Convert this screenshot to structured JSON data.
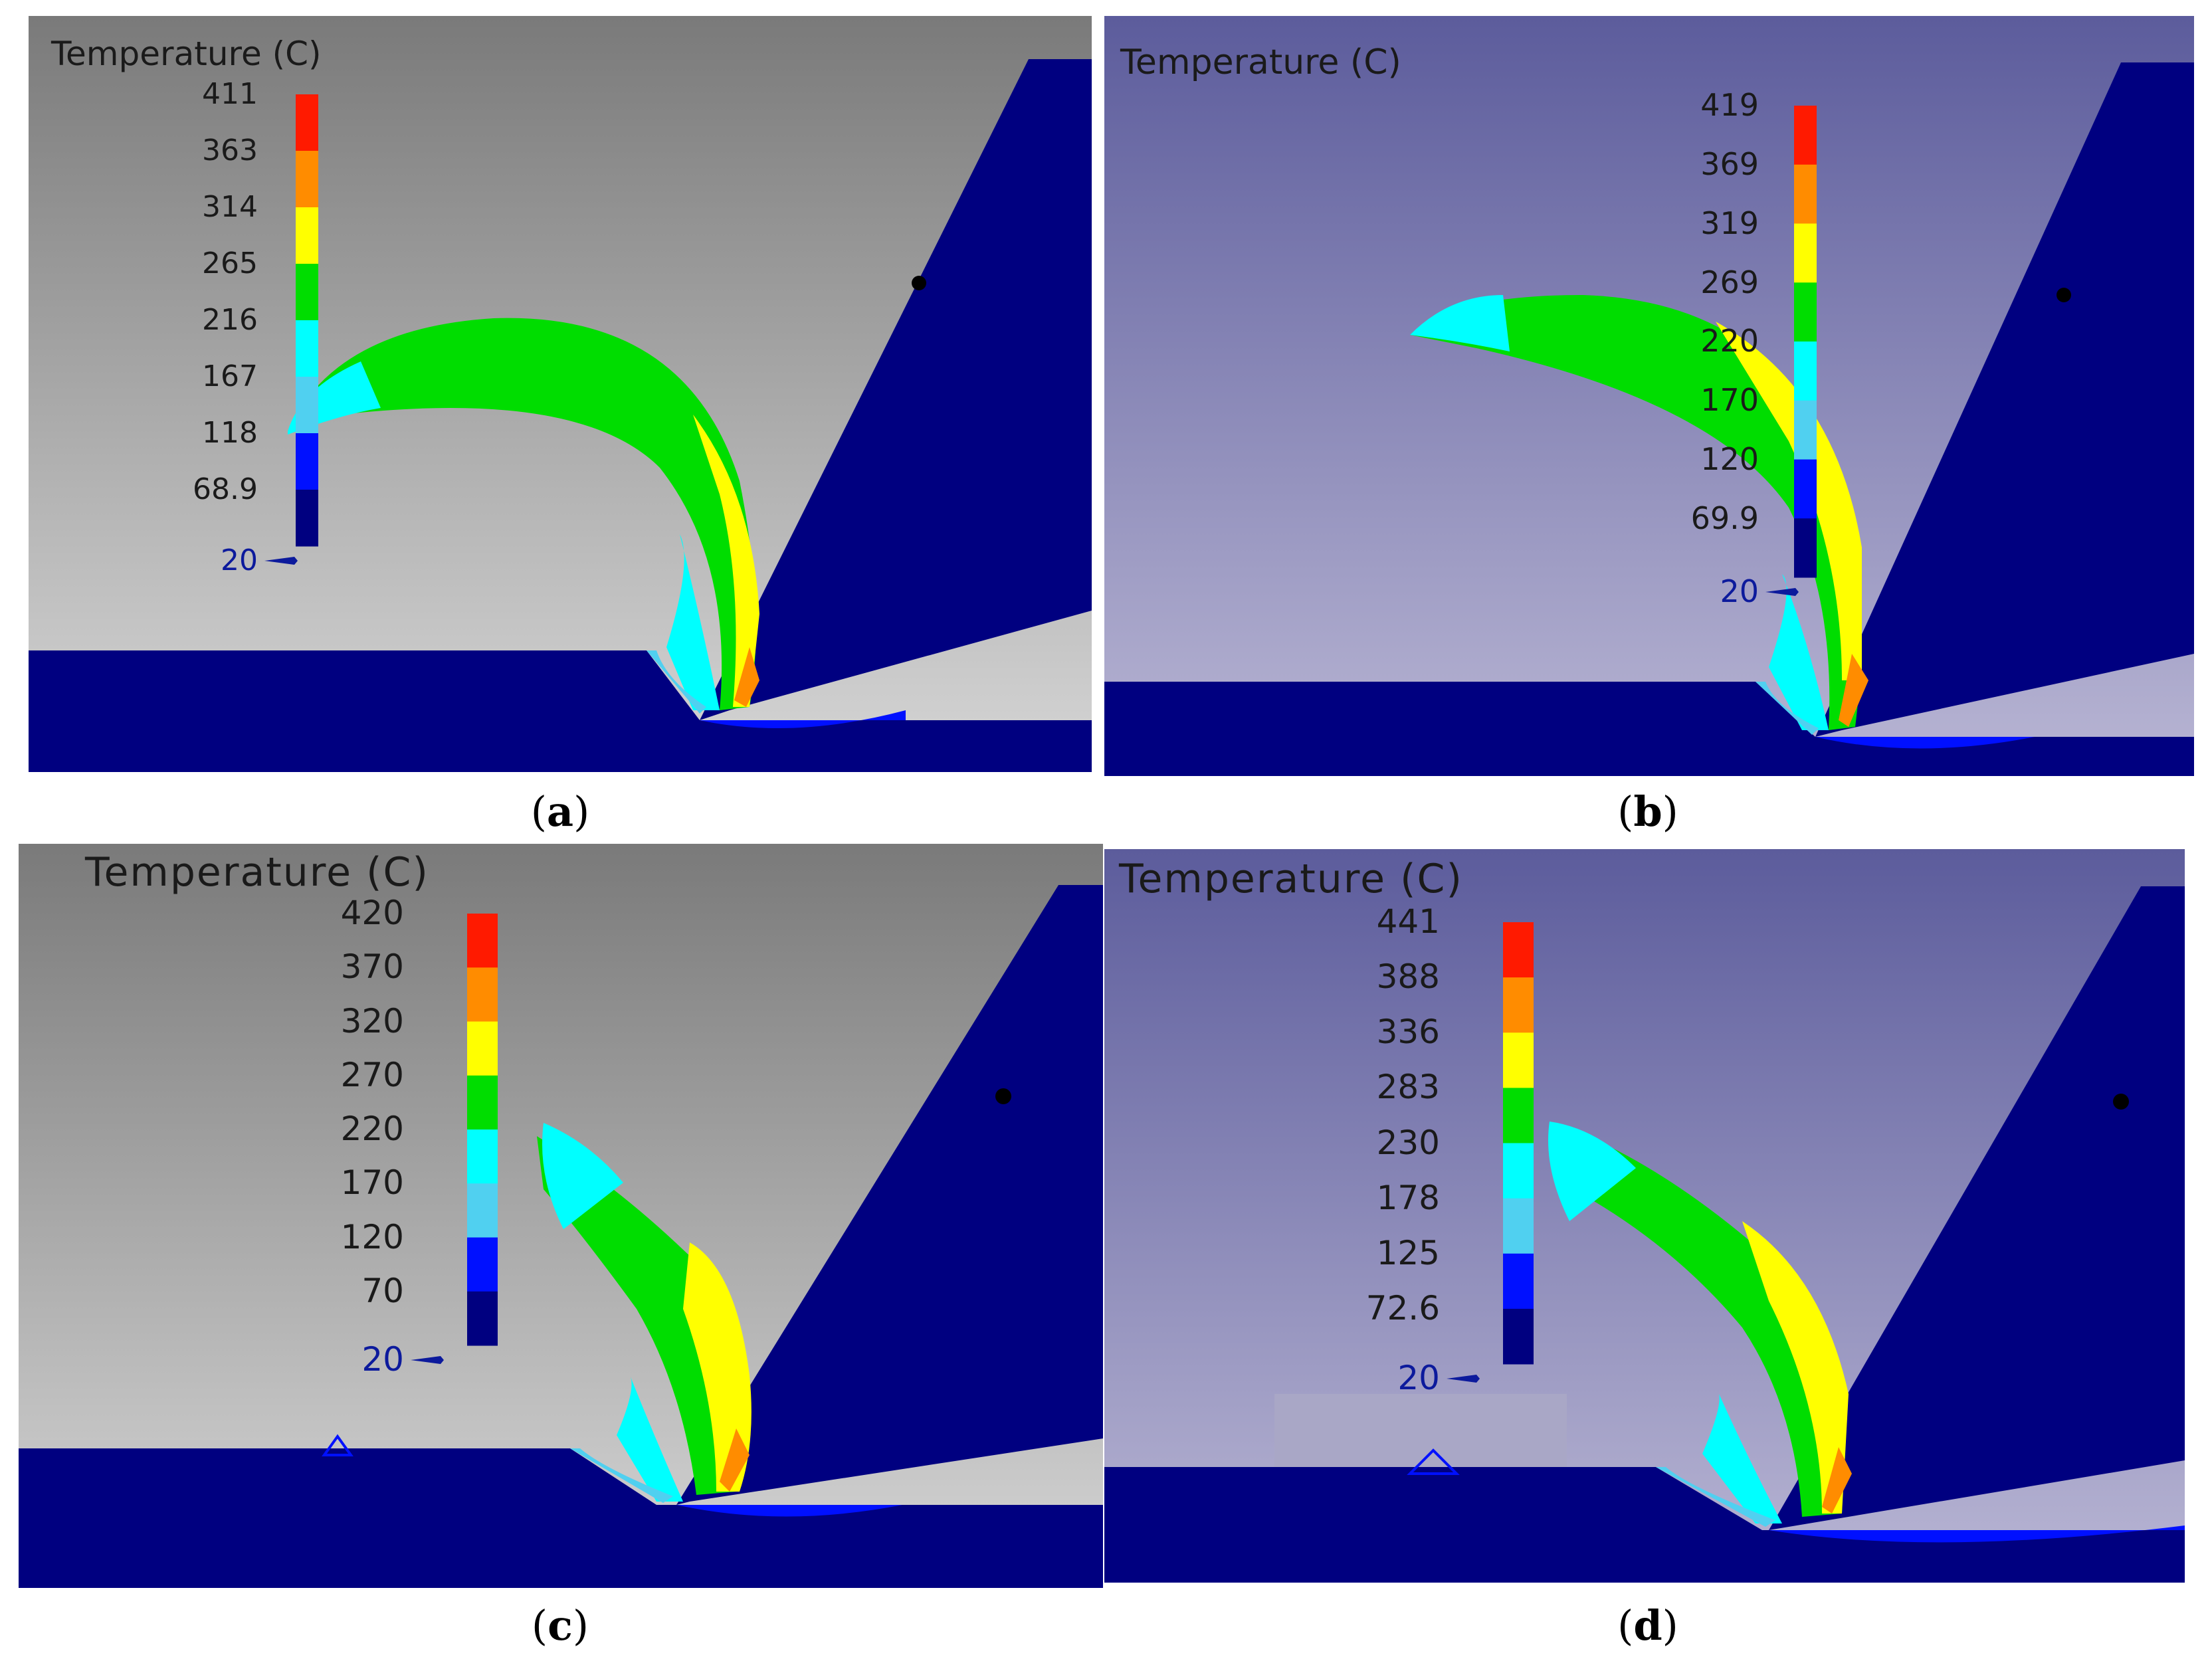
{
  "panels": [
    {
      "id": "a",
      "caption_letter": "a",
      "legend": {
        "title": "Temperature (C)",
        "ticks": [
          "411",
          "363",
          "314",
          "265",
          "216",
          "167",
          "118",
          "68.9",
          "20"
        ]
      },
      "background": "gray"
    },
    {
      "id": "b",
      "caption_letter": "b",
      "legend": {
        "title": "Temperature (C)",
        "ticks": [
          "419",
          "369",
          "319",
          "269",
          "220",
          "170",
          "120",
          "69.9",
          "20"
        ]
      },
      "background": "lavender"
    },
    {
      "id": "c",
      "caption_letter": "c",
      "legend": {
        "title": "Temperature (C)",
        "ticks": [
          "420",
          "370",
          "320",
          "270",
          "220",
          "170",
          "120",
          "70",
          "20"
        ]
      },
      "background": "gray"
    },
    {
      "id": "d",
      "caption_letter": "d",
      "legend": {
        "title": "Temperature (C)",
        "ticks": [
          "441",
          "388",
          "336",
          "283",
          "230",
          "178",
          "125",
          "72.6",
          "20"
        ]
      },
      "background": "lavender"
    }
  ],
  "colorbar": [
    "#ff1a00",
    "#ff8c00",
    "#ffff00",
    "#00dd00",
    "#00ffff",
    "#50d0f0",
    "#0010ff",
    "#000080"
  ],
  "colors": {
    "tool": "#000080",
    "workpiece": "#000080",
    "red": "#ff1a00",
    "orange": "#ff8c00",
    "yellow": "#ffff00",
    "green": "#00dd00",
    "cyan": "#00ffff",
    "light_blue": "#50d0f0",
    "blue": "#0010ff"
  }
}
